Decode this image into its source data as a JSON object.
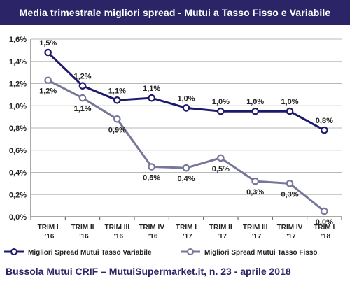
{
  "chart_data": {
    "type": "line",
    "title": "Media trimestrale migliori spread - Mutui a Tasso Fisso e Variabile",
    "categories": [
      [
        "TRIM I",
        "'16"
      ],
      [
        "TRIM II",
        "'16"
      ],
      [
        "TRIM III",
        "'16"
      ],
      [
        "TRIM IV",
        "'16"
      ],
      [
        "TRIM I",
        "'17"
      ],
      [
        "TRIM II",
        "'17"
      ],
      [
        "TRIM III",
        "'17"
      ],
      [
        "TRIM IV",
        "'17"
      ],
      [
        "TRIM I",
        "'18"
      ]
    ],
    "series": [
      {
        "name": "Migliori Spread Mutui Tasso Variabile",
        "color": "#1e1a6b",
        "values": [
          1.48,
          1.18,
          1.05,
          1.07,
          0.98,
          0.95,
          0.95,
          0.95,
          0.78
        ],
        "labels": [
          "1,5%",
          "1,2%",
          "1,1%",
          "1,1%",
          "1,0%",
          "1,0%",
          "1,0%",
          "1,0%",
          "0,8%"
        ]
      },
      {
        "name": "Migliori Spread Mutui Tasso Fisso",
        "color": "#76769a",
        "values": [
          1.23,
          1.07,
          0.88,
          0.45,
          0.44,
          0.53,
          0.32,
          0.3,
          0.05
        ],
        "labels": [
          "1,2%",
          "1,1%",
          "0,9%",
          "0,5%",
          "0,4%",
          "0,5%",
          "0,3%",
          "0,3%",
          "0,0%"
        ]
      }
    ],
    "ylim": [
      0,
      1.6
    ],
    "yticks": [
      "0,0%",
      "0,2%",
      "0,4%",
      "0,6%",
      "0,8%",
      "1,0%",
      "1,2%",
      "1,4%",
      "1,6%"
    ],
    "grid": true,
    "legend_position": "bottom"
  },
  "footer": "Bussola Mutui CRIF – MutuiSupermarket.it, n. 23 - aprile 2018"
}
